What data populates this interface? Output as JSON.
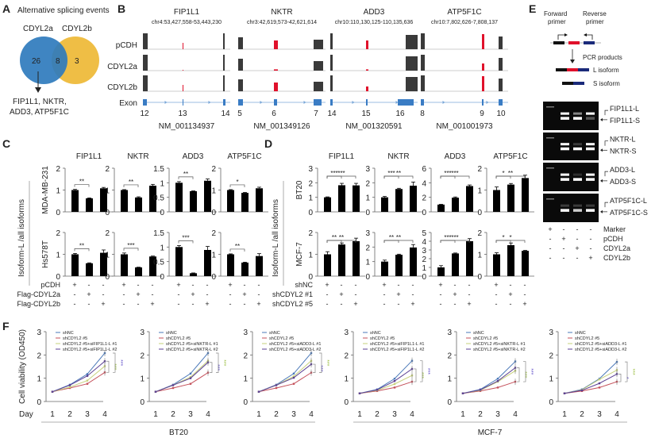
{
  "panels": {
    "A": "A",
    "B": "B",
    "C": "C",
    "D": "D",
    "E": "E",
    "F": "F"
  },
  "venn": {
    "title": "Alternative splicing events",
    "left_label": "CDYL2a",
    "right_label": "CDYL2b",
    "left_only": "26",
    "overlap": "8",
    "right_only": "3",
    "genes_line1": "FIP1L1, NKTR,",
    "genes_line2": "ADD3, ATP5F1C",
    "colors": {
      "left": "#2f7bbd",
      "right": "#efbe45"
    }
  },
  "tracks": {
    "row_labels": [
      "pCDH",
      "CDYL2a",
      "CDYL2b",
      "Exon"
    ],
    "genes": [
      {
        "name": "FIP1L1",
        "coords": "chr4:53,427,558-53,443,230",
        "exons": [
          "12",
          "13",
          "14"
        ],
        "accession": "NM_001134937"
      },
      {
        "name": "NKTR",
        "coords": "chr3:42,619,573-42,621,614",
        "exons": [
          "5",
          "6",
          "7"
        ],
        "accession": "NM_001349126"
      },
      {
        "name": "ADD3",
        "coords": "chr10:110,130,125-110,135,636",
        "exons": [
          "14",
          "15",
          "16"
        ],
        "accession": "NM_001320591"
      },
      {
        "name": "ATP5F1C",
        "coords": "chr10:7,802,626-7,808,137",
        "exons": [
          "8",
          "9",
          "10"
        ],
        "accession": "NM_001001973"
      }
    ],
    "colors": {
      "coverage": "#3a3a3a",
      "alt_exon": "#e0112b",
      "exon": "#3a7cc4"
    }
  },
  "pcr": {
    "forward": [
      "Forward",
      "primer"
    ],
    "reverse": [
      "Reverse",
      "primer"
    ],
    "products_label": "PCR products",
    "l_isoform": "L isoform",
    "s_isoform": "S isoform",
    "gels": [
      {
        "L": "FIP1L1-L",
        "S": "FIP1L1-S"
      },
      {
        "L": "NKTR-L",
        "S": "NKTR-S"
      },
      {
        "L": "ADD3-L",
        "S": "ADD3-S"
      },
      {
        "L": "ATP5F1C-L",
        "S": "ATP5F1C-S"
      }
    ],
    "lane_rows": [
      {
        "label": "Marker",
        "signs": [
          "+",
          "-",
          "-",
          "-"
        ]
      },
      {
        "label": "pCDH",
        "signs": [
          "-",
          "+",
          "-",
          "-"
        ]
      },
      {
        "label": "CDYL2a",
        "signs": [
          "-",
          "-",
          "+",
          "-"
        ]
      },
      {
        "label": "CDYL2b",
        "signs": [
          "-",
          "-",
          "-",
          "+"
        ]
      }
    ]
  },
  "chart_data": [
    {
      "id": "C",
      "type": "bar",
      "ylabel": "Isoform-L /all isoforms",
      "rows": [
        "MDA-MB-231",
        "Hs578T"
      ],
      "genes": [
        "FIP1L1",
        "NKTR",
        "ADD3",
        "ATP5F1C"
      ],
      "categories": [
        "pCDH",
        "Flag-CDYL2a",
        "Flag-CDYL2b"
      ],
      "conditions": [
        {
          "label": "pCDH",
          "signs": [
            "+",
            "-",
            "-"
          ]
        },
        {
          "label": "Flag-CDYL2a",
          "signs": [
            "-",
            "+",
            "-"
          ]
        },
        {
          "label": "Flag-CDYL2b",
          "signs": [
            "-",
            "-",
            "+"
          ]
        }
      ],
      "plots": [
        {
          "row": "MDA-MB-231",
          "gene": "FIP1L1",
          "ymax": 2,
          "ticks": [
            "0",
            "1",
            "2"
          ],
          "values": [
            1.0,
            0.62,
            1.08
          ],
          "errors": [
            0.03,
            0.02,
            0.04
          ],
          "sig": [
            {
              "from": 0,
              "to": 1,
              "label": "**"
            }
          ]
        },
        {
          "row": "MDA-MB-231",
          "gene": "NKTR",
          "ymax": 2,
          "ticks": [
            "0",
            "1",
            "2"
          ],
          "values": [
            1.0,
            0.66,
            1.2
          ],
          "errors": [
            0.02,
            0.03,
            0.06
          ],
          "sig": [
            {
              "from": 0,
              "to": 1,
              "label": "**"
            }
          ]
        },
        {
          "row": "MDA-MB-231",
          "gene": "ADD3",
          "ymax": 1.5,
          "ticks": [
            "0",
            "0.5",
            "1",
            "1.5"
          ],
          "values": [
            1.0,
            0.71,
            1.07
          ],
          "errors": [
            0.04,
            0.01,
            0.06
          ],
          "sig": [
            {
              "from": 0,
              "to": 1,
              "label": "**"
            }
          ]
        },
        {
          "row": "MDA-MB-231",
          "gene": "ATP5F1C",
          "ymax": 2,
          "ticks": [
            "0",
            "1",
            "2"
          ],
          "values": [
            1.0,
            0.87,
            1.08
          ],
          "errors": [
            0.02,
            0.02,
            0.05
          ],
          "sig": [
            {
              "from": 0,
              "to": 1,
              "label": "*"
            }
          ]
        },
        {
          "row": "Hs578T",
          "gene": "FIP1L1",
          "ymax": 2,
          "ticks": [
            "0",
            "1",
            "2"
          ],
          "values": [
            1.0,
            0.59,
            1.07
          ],
          "errors": [
            0.04,
            0.02,
            0.13
          ],
          "sig": [
            {
              "from": 0,
              "to": 1,
              "label": "**"
            }
          ]
        },
        {
          "row": "Hs578T",
          "gene": "NKTR",
          "ymax": 2,
          "ticks": [
            "0",
            "1",
            "2"
          ],
          "values": [
            1.0,
            0.4,
            0.9
          ],
          "errors": [
            0.06,
            0.01,
            0.02
          ],
          "sig": [
            {
              "from": 0,
              "to": 1,
              "label": "***"
            }
          ]
        },
        {
          "row": "Hs578T",
          "gene": "ADD3",
          "ymax": 1.5,
          "ticks": [
            "0",
            "0.5",
            "1",
            "1.5"
          ],
          "values": [
            1.0,
            0.1,
            0.9
          ],
          "errors": [
            0.05,
            0.01,
            0.12
          ],
          "sig": [
            {
              "from": 0,
              "to": 1,
              "label": "***"
            }
          ]
        },
        {
          "row": "Hs578T",
          "gene": "ATP5F1C",
          "ymax": 2,
          "ticks": [
            "0",
            "1",
            "2"
          ],
          "values": [
            1.0,
            0.62,
            0.92
          ],
          "errors": [
            0.02,
            0.02,
            0.11
          ],
          "sig": [
            {
              "from": 0,
              "to": 1,
              "label": "**"
            }
          ]
        }
      ]
    },
    {
      "id": "D",
      "type": "bar",
      "ylabel": "Isoform-L /all isoforms",
      "rows": [
        "BT20",
        "MCF-7"
      ],
      "genes": [
        "FIP1L1",
        "NKTR",
        "ADD3",
        "ATP5F1C"
      ],
      "categories": [
        "shNC",
        "shCDYL2 #1",
        "shCDYL2 #5"
      ],
      "conditions": [
        {
          "label": "shNC",
          "signs": [
            "+",
            "-",
            "-"
          ]
        },
        {
          "label": "shCDYL2 #1",
          "signs": [
            "-",
            "+",
            "-"
          ]
        },
        {
          "label": "shCDYL2 #5",
          "signs": [
            "-",
            "-",
            "+"
          ]
        }
      ],
      "plots": [
        {
          "row": "BT20",
          "gene": "FIP1L1",
          "ymax": 3,
          "ticks": [
            "0",
            "1",
            "2",
            "3"
          ],
          "values": [
            1.0,
            1.83,
            1.82
          ],
          "errors": [
            0.03,
            0.13,
            0.14
          ],
          "sig": [
            {
              "from": 0,
              "to": 1,
              "label": "***"
            },
            {
              "from": 0,
              "to": 2,
              "label": "***"
            }
          ]
        },
        {
          "row": "BT20",
          "gene": "NKTR",
          "ymax": 3,
          "ticks": [
            "0",
            "1",
            "2",
            "3"
          ],
          "values": [
            1.0,
            1.57,
            1.8
          ],
          "errors": [
            0.06,
            0.05,
            0.25
          ],
          "sig": [
            {
              "from": 0,
              "to": 1,
              "label": "***"
            },
            {
              "from": 0,
              "to": 2,
              "label": "**"
            }
          ]
        },
        {
          "row": "BT20",
          "gene": "ADD3",
          "ymax": 6,
          "ticks": [
            "0",
            "2",
            "4",
            "6"
          ],
          "values": [
            1.0,
            1.95,
            3.55
          ],
          "errors": [
            0.04,
            0.1,
            0.15
          ],
          "sig": [
            {
              "from": 0,
              "to": 1,
              "label": "***"
            },
            {
              "from": 0,
              "to": 2,
              "label": "***"
            }
          ]
        },
        {
          "row": "BT20",
          "gene": "ATP5F1C",
          "ymax": 2,
          "ticks": [
            "0",
            "1",
            "2"
          ],
          "values": [
            1.0,
            1.25,
            1.55
          ],
          "errors": [
            0.14,
            0.05,
            0.13
          ],
          "sig": [
            {
              "from": 0,
              "to": 1,
              "label": "*"
            },
            {
              "from": 0,
              "to": 2,
              "label": "**"
            }
          ]
        },
        {
          "row": "MCF-7",
          "gene": "FIP1L1",
          "ymax": 2,
          "ticks": [
            "0",
            "1",
            "2"
          ],
          "values": [
            1.0,
            1.45,
            1.6
          ],
          "errors": [
            0.12,
            0.07,
            0.14
          ],
          "sig": [
            {
              "from": 0,
              "to": 1,
              "label": "**"
            },
            {
              "from": 0,
              "to": 2,
              "label": "**"
            }
          ]
        },
        {
          "row": "MCF-7",
          "gene": "NKTR",
          "ymax": 3,
          "ticks": [
            "0",
            "1",
            "2",
            "3"
          ],
          "values": [
            1.0,
            1.47,
            1.97
          ],
          "errors": [
            0.1,
            0.04,
            0.2
          ],
          "sig": [
            {
              "from": 0,
              "to": 1,
              "label": "**"
            },
            {
              "from": 0,
              "to": 2,
              "label": "**"
            }
          ]
        },
        {
          "row": "MCF-7",
          "gene": "ADD3",
          "ymax": 5,
          "ticks": [
            "0",
            "1",
            "2",
            "3",
            "4",
            "5"
          ],
          "values": [
            1.0,
            2.6,
            4.0
          ],
          "errors": [
            0.2,
            0.05,
            0.3
          ],
          "sig": [
            {
              "from": 0,
              "to": 1,
              "label": "***"
            },
            {
              "from": 0,
              "to": 2,
              "label": "***"
            }
          ]
        },
        {
          "row": "MCF-7",
          "gene": "ATP5F1C",
          "ymax": 2,
          "ticks": [
            "0",
            "1",
            "2"
          ],
          "values": [
            1.0,
            1.42,
            1.16
          ],
          "errors": [
            0.07,
            0.1,
            0.02
          ],
          "sig": [
            {
              "from": 0,
              "to": 1,
              "label": "*"
            },
            {
              "from": 0,
              "to": 2,
              "label": "*"
            }
          ]
        }
      ]
    },
    {
      "id": "F",
      "type": "line",
      "ylabel": "Cell viability (OD450)",
      "xlabel": "Day",
      "x": [
        1,
        2,
        3,
        4
      ],
      "ylim": [
        0,
        3
      ],
      "yticks": [
        "0",
        "1",
        "2",
        "3"
      ],
      "groups": [
        "BT20",
        "MCF-7"
      ],
      "series_colors": [
        "#4a78b8",
        "#c4505a",
        "#c6d07a",
        "#5a3f93"
      ],
      "plots": [
        {
          "group": "BT20",
          "legend": [
            "shNC",
            "shCDYL2 #5",
            "shCDYL2 #5+siFIP1L1-L #1",
            "shCDYL2 #5+siFIP1L1-L #2"
          ],
          "series": [
            [
              0.42,
              0.72,
              1.18,
              2.08
            ],
            [
              0.42,
              0.58,
              0.76,
              1.25
            ],
            [
              0.42,
              0.62,
              0.9,
              1.52
            ],
            [
              0.42,
              0.7,
              1.1,
              1.73
            ]
          ],
          "sig": [
            {
              "label": "***",
              "color": "#9fc14a",
              "inner": true
            },
            {
              "label": "***",
              "color": "#6a5acd",
              "inner": false
            }
          ]
        },
        {
          "group": "BT20",
          "legend": [
            "shNC",
            "shCDYL2 #5",
            "shCDYL2 #5+siNKTR-L #1",
            "shCDYL2 #5+siNKTR-L #2"
          ],
          "series": [
            [
              0.42,
              0.72,
              1.2,
              2.08
            ],
            [
              0.42,
              0.58,
              0.76,
              1.24
            ],
            [
              0.42,
              0.7,
              1.05,
              1.75
            ],
            [
              0.42,
              0.7,
              1.0,
              1.68
            ]
          ],
          "sig": [
            {
              "label": "***",
              "color": "#6a5acd",
              "inner": true
            },
            {
              "label": "***",
              "color": "#9fc14a",
              "inner": false
            }
          ]
        },
        {
          "group": "BT20",
          "legend": [
            "shNC",
            "shCDYL2 #5",
            "shCDYL2 #5+siADD3-L #1",
            "shCDYL2 #5+siADD3-L #2"
          ],
          "series": [
            [
              0.42,
              0.72,
              1.2,
              2.08
            ],
            [
              0.42,
              0.58,
              0.76,
              1.24
            ],
            [
              0.42,
              0.7,
              1.08,
              1.75
            ],
            [
              0.42,
              0.7,
              1.02,
              1.6
            ]
          ],
          "sig": [
            {
              "label": "***",
              "color": "#6a5acd",
              "inner": true
            },
            {
              "label": "***",
              "color": "#9fc14a",
              "inner": false
            }
          ]
        },
        {
          "group": "MCF-7",
          "legend": [
            "shNC",
            "shCDYL2 #5",
            "shCDYL2 #5+siFIP1L1-L #1",
            "shCDYL2 #5+siFIP1L1-L #2"
          ],
          "series": [
            [
              0.35,
              0.52,
              0.98,
              1.75
            ],
            [
              0.35,
              0.45,
              0.6,
              0.85
            ],
            [
              0.35,
              0.48,
              0.75,
              1.12
            ],
            [
              0.35,
              0.5,
              0.88,
              1.4
            ]
          ],
          "sig": [
            {
              "label": "***",
              "color": "#9fc14a",
              "inner": true
            },
            {
              "label": "***",
              "color": "#6a5acd",
              "inner": false
            }
          ]
        },
        {
          "group": "MCF-7",
          "legend": [
            "shNC",
            "shCDYL2 #5",
            "shCDYL2 #5+siNKTR-L #1",
            "shCDYL2 #5+siNKTR-L #2"
          ],
          "series": [
            [
              0.35,
              0.52,
              0.98,
              1.72
            ],
            [
              0.35,
              0.45,
              0.6,
              0.85
            ],
            [
              0.35,
              0.48,
              0.85,
              1.32
            ],
            [
              0.35,
              0.5,
              0.88,
              1.45
            ]
          ],
          "sig": [
            {
              "label": "***",
              "color": "#9fc14a",
              "inner": true
            },
            {
              "label": "***",
              "color": "#6a5acd",
              "inner": false
            }
          ]
        },
        {
          "group": "MCF-7",
          "legend": [
            "shNC",
            "shCDYL2 #5",
            "shCDYL2 #5+siADD3-L #1",
            "shCDYL2 #5+siADD3-L #2"
          ],
          "series": [
            [
              0.35,
              0.52,
              0.98,
              1.7
            ],
            [
              0.35,
              0.45,
              0.6,
              0.85
            ],
            [
              0.35,
              0.5,
              0.95,
              1.35
            ],
            [
              0.35,
              0.48,
              0.78,
              1.18
            ]
          ],
          "sig": [
            {
              "label": "*",
              "color": "#6a5acd",
              "inner": true
            },
            {
              "label": "***",
              "color": "#9fc14a",
              "inner": false
            }
          ]
        }
      ]
    }
  ]
}
